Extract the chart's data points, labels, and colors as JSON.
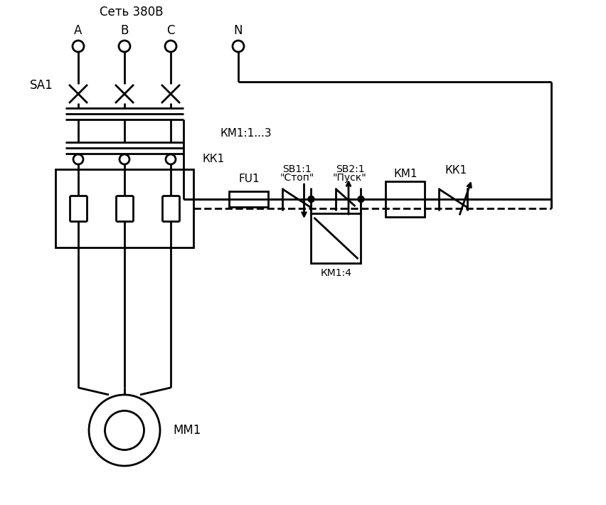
{
  "background": "#ffffff",
  "line_color": "#000000",
  "lw": 2.0,
  "figsize": [
    8.53,
    7.1
  ],
  "dpi": 100,
  "labels": {
    "net": "Сеть 380В",
    "A": "A",
    "B": "B",
    "C": "C",
    "N": "N",
    "SA1": "SA1",
    "FU1": "FU1",
    "SB1": "SB1:1",
    "SB1_sub": "\"Стоп\"",
    "SB2": "SB2:1",
    "SB2_sub": "\"Пуск\"",
    "KM1": "КМ1",
    "KK1_top": "КК1",
    "KM1_4": "КМ1:4",
    "KM1_13": "КМ1:1...3",
    "KK1_bot": "КК1",
    "MM1": "ММ1"
  }
}
